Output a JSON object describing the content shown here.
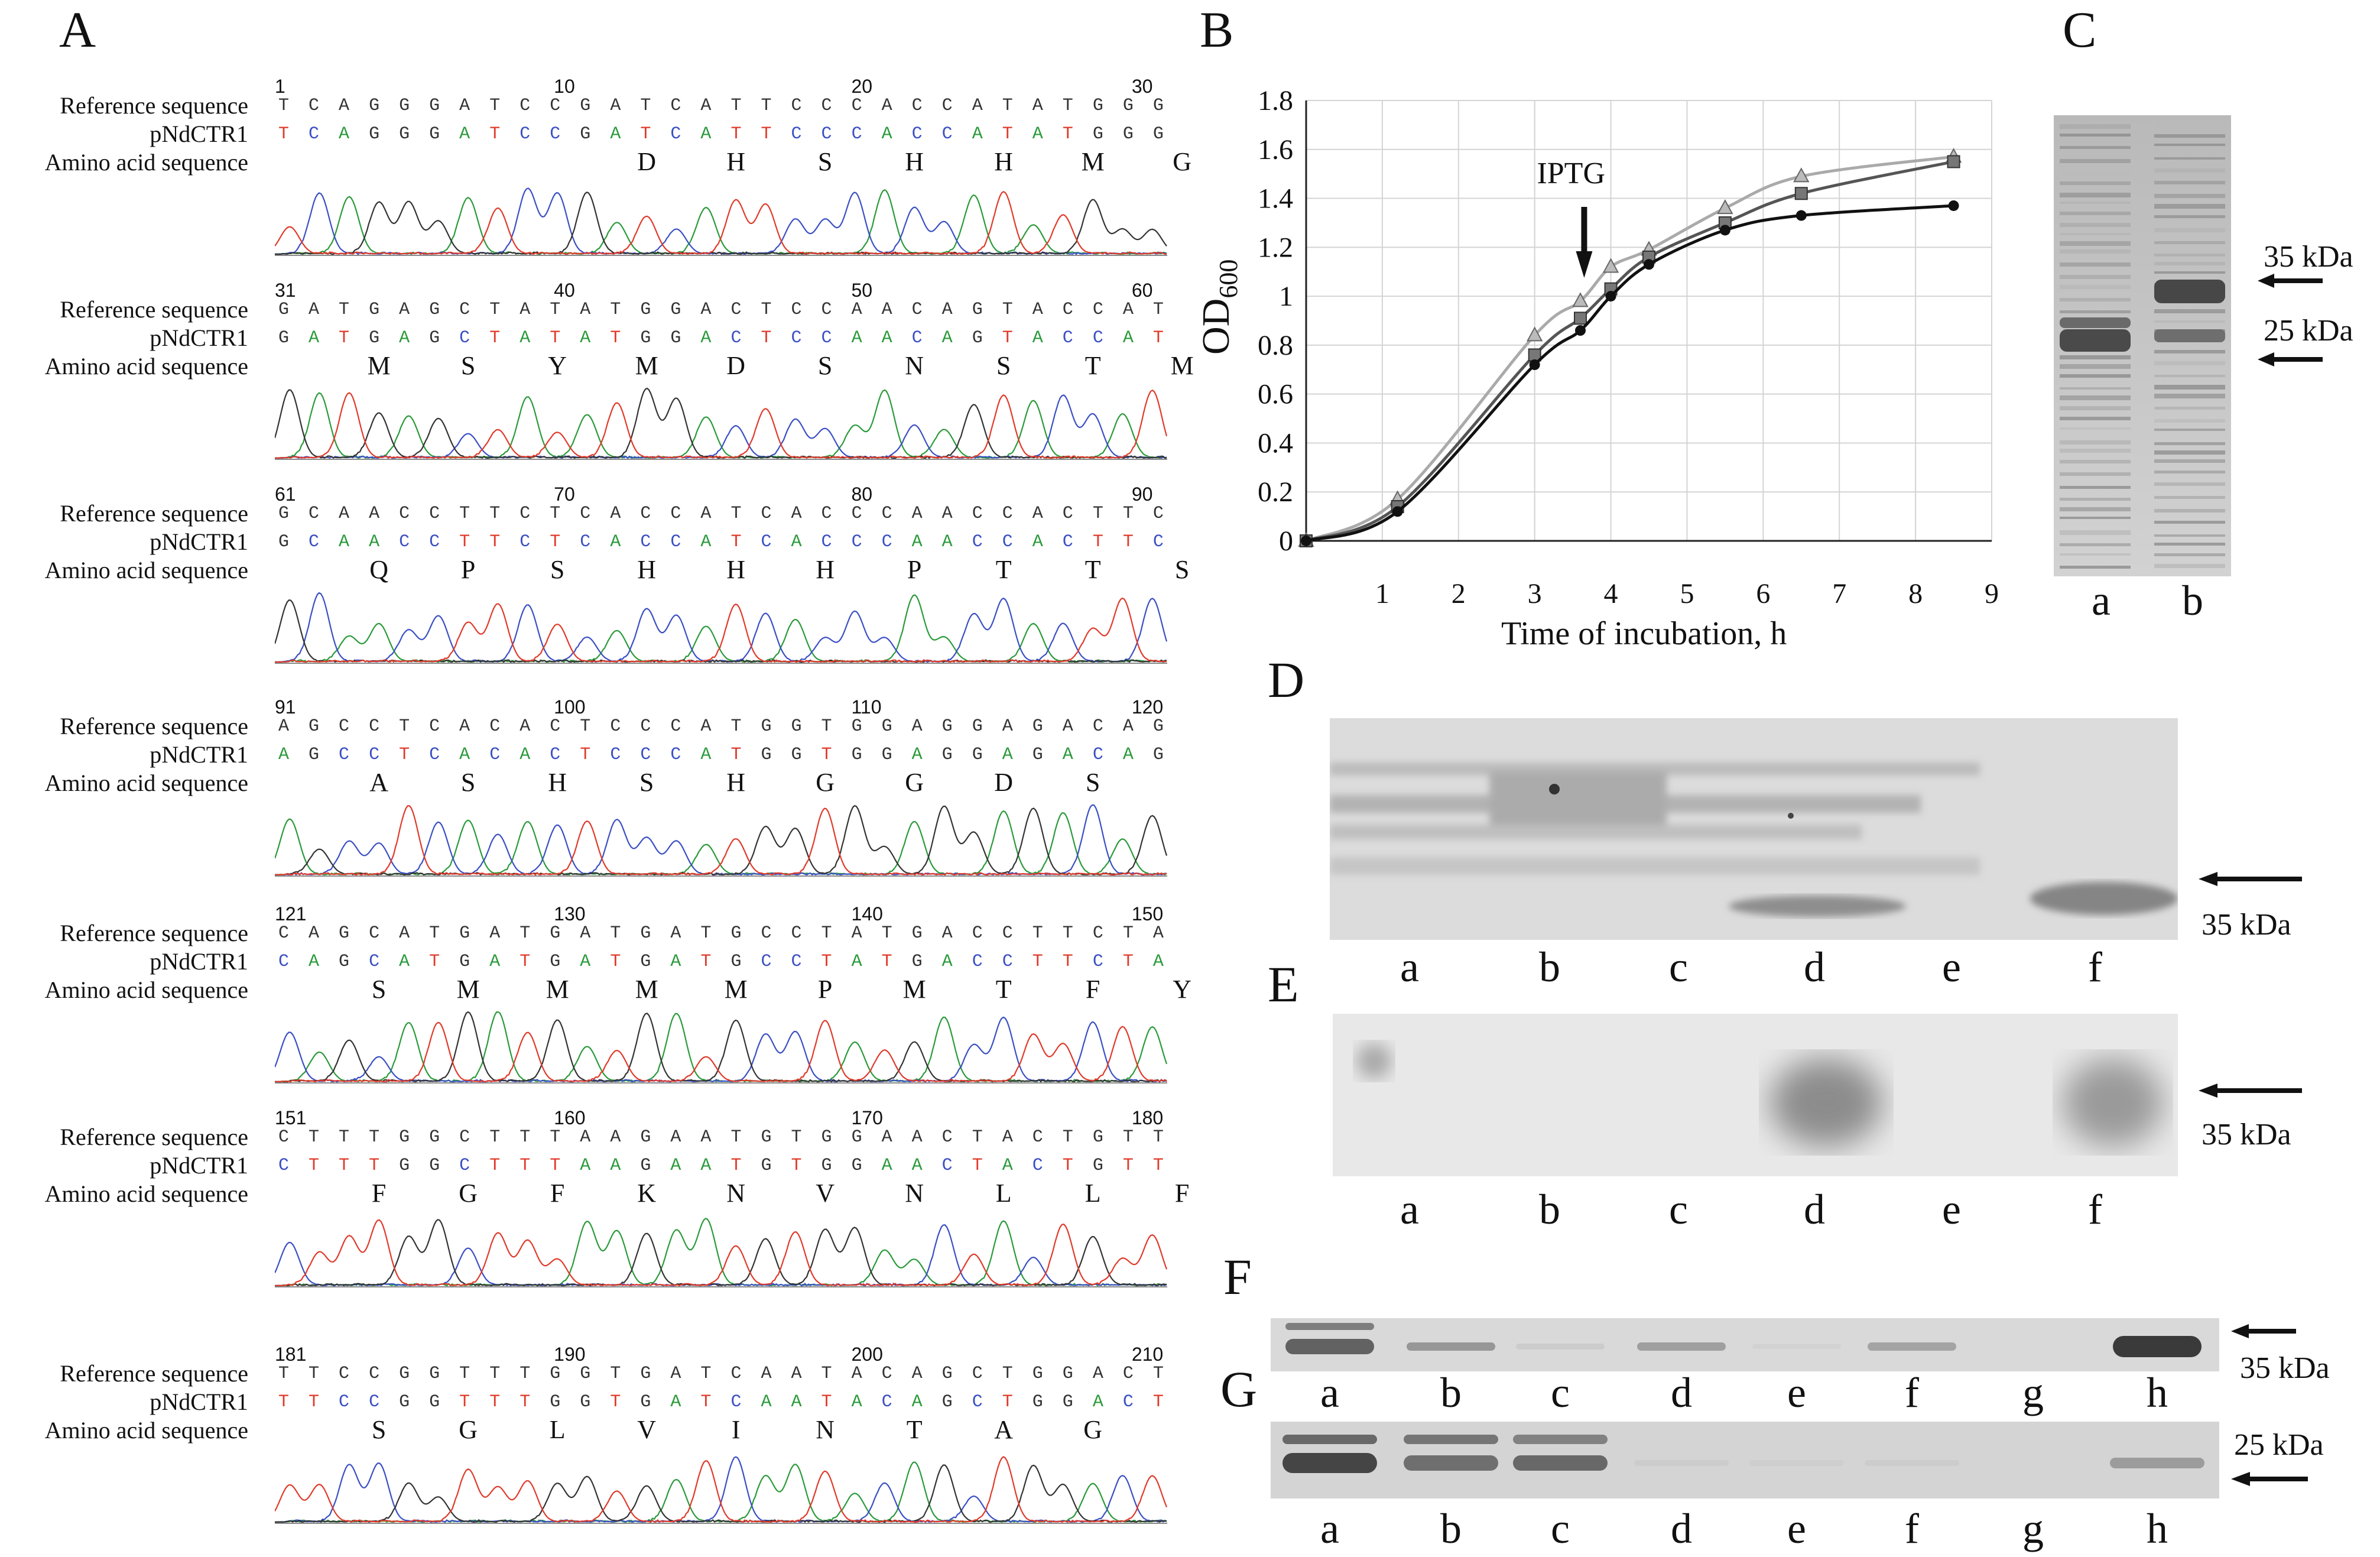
{
  "panels": {
    "A": "A",
    "B": "B",
    "C": "C",
    "D": "D",
    "E": "E",
    "F": "F",
    "G": "G"
  },
  "panelA": {
    "row_labels": [
      "Reference sequence",
      "pNdCTR1",
      "Amino acid sequence"
    ],
    "blocks": [
      {
        "start": "1",
        "mid1": "10",
        "mid2": "20",
        "end": "30",
        "ref": "TCAGGGATCCGATCATTCCCACCATATGGG",
        "seq": "TCAGGGATCCGATCATTCCCACCATATGGG",
        "aa": [
          "D",
          "H",
          "S",
          "H",
          "H",
          "M",
          "G"
        ],
        "aa_start": 11
      },
      {
        "start": "31",
        "mid1": "40",
        "mid2": "50",
        "end": "60",
        "ref": "GATGAGCTATATGGACTCCAACAGTACCAT",
        "seq": "GATGAGCTATATGGACTCCAACAGTACCAT",
        "aa": [
          "M",
          "S",
          "Y",
          "M",
          "D",
          "S",
          "N",
          "S",
          "T",
          "M"
        ],
        "aa_start": 2
      },
      {
        "start": "61",
        "mid1": "70",
        "mid2": "80",
        "end": "90",
        "ref": "GCAACCTTCTCACCATCACCCAACCACTTC",
        "seq": "GCAACCTTCTCACCATCACCCAACCACTTC",
        "aa": [
          "Q",
          "P",
          "S",
          "H",
          "H",
          "H",
          "P",
          "T",
          "T",
          "S"
        ],
        "aa_start": 2
      },
      {
        "start": "91",
        "mid1": "100",
        "mid2": "110",
        "end": "120",
        "ref": "AGCCTCACACTCCCATGGTGGAGGAGACAG",
        "seq": "AGCCTCACACTCCCATGGTGGAGGAGACAG",
        "aa": [
          "A",
          "S",
          "H",
          "S",
          "H",
          "G",
          "G",
          "D",
          "S"
        ],
        "aa_start": 2
      },
      {
        "start": "121",
        "mid1": "130",
        "mid2": "140",
        "end": "150",
        "ref": "CAGCATGATGATGATGCCTATGACCTTCTA",
        "seq": "CAGCATGATGATGATGCCTATGACCTTCTA",
        "aa": [
          "S",
          "M",
          "M",
          "M",
          "M",
          "P",
          "M",
          "T",
          "F",
          "Y"
        ],
        "aa_start": 2
      },
      {
        "start": "151",
        "mid1": "160",
        "mid2": "170",
        "end": "180",
        "ref": "CTTTGGCTTTAAGAATGTGGAACTACTGTT",
        "seq": "CTTTGGCTTTAAGAATGTGGAACTACTGTT",
        "aa": [
          "F",
          "G",
          "F",
          "K",
          "N",
          "V",
          "N",
          "L",
          "L",
          "F"
        ],
        "aa_start": 2
      },
      {
        "start": "181",
        "mid1": "190",
        "mid2": "200",
        "end": "210",
        "ref": "TTCCGGTTTGGTGATCAATACAGCTGGACT",
        "seq": "TTCCGGTTTGGTGATCAATACAGCTGGACT",
        "aa": [
          "S",
          "G",
          "L",
          "V",
          "I",
          "N",
          "T",
          "A",
          "G"
        ],
        "aa_start": 2
      }
    ]
  },
  "chart_data": {
    "type": "line",
    "title": "",
    "xlabel": "Time of incubation, h",
    "ylabel": "OD600",
    "ylabel_main": "OD",
    "ylabel_sub": "600",
    "xlim": [
      0,
      9
    ],
    "ylim": [
      0,
      1.8
    ],
    "xticks": [
      "1",
      "2",
      "3",
      "4",
      "5",
      "6",
      "7",
      "8",
      "9"
    ],
    "yticks": [
      "0",
      "0.2",
      "0.4",
      "0.6",
      "0.8",
      "1",
      "1.2",
      "1.4",
      "1.6",
      "1.8"
    ],
    "annotation": "IPTG",
    "annotation_x": 3.65,
    "series": [
      {
        "name": "circle",
        "marker": "circle",
        "color": "#111111",
        "x": [
          0,
          1.2,
          3,
          3.6,
          4,
          4.5,
          5.5,
          6.5,
          8.5
        ],
        "y": [
          0,
          0.12,
          0.72,
          0.86,
          1.0,
          1.13,
          1.27,
          1.33,
          1.37
        ]
      },
      {
        "name": "square",
        "marker": "square",
        "color": "#555555",
        "x": [
          0,
          1.2,
          3,
          3.6,
          4,
          4.5,
          5.5,
          6.5,
          8.5
        ],
        "y": [
          0,
          0.14,
          0.76,
          0.91,
          1.03,
          1.16,
          1.3,
          1.42,
          1.55
        ]
      },
      {
        "name": "triangle",
        "marker": "triangle",
        "color": "#aaaaaa",
        "x": [
          0,
          1.2,
          3,
          3.6,
          4,
          4.5,
          5.5,
          6.5,
          8.5
        ],
        "y": [
          0,
          0.17,
          0.84,
          0.98,
          1.12,
          1.19,
          1.36,
          1.49,
          1.57
        ]
      }
    ]
  },
  "panelC": {
    "lanes": [
      "a",
      "b"
    ],
    "kda_upper": "35 kDa",
    "kda_lower": "25 kDa"
  },
  "panelD": {
    "lanes": [
      "a",
      "b",
      "c",
      "d",
      "e",
      "f"
    ],
    "kda": "35 kDa"
  },
  "panelE": {
    "lanes": [
      "a",
      "b",
      "c",
      "d",
      "e",
      "f"
    ],
    "kda": "35 kDa"
  },
  "panelF": {
    "lanes": [
      "a",
      "b",
      "c",
      "d",
      "e",
      "f",
      "g",
      "h"
    ],
    "kda": "35 kDa"
  },
  "panelG": {
    "lanes": [
      "a",
      "b",
      "c",
      "d",
      "e",
      "f",
      "g",
      "h"
    ],
    "kda": "25 kDa"
  }
}
